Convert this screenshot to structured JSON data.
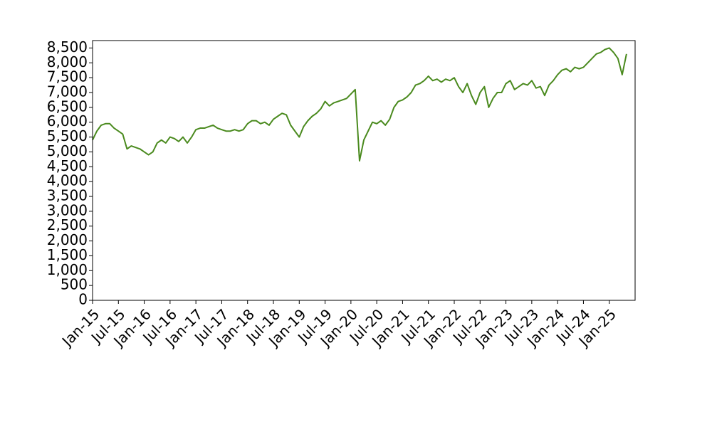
{
  "chart_data": {
    "type": "line",
    "x": [
      "2015-01",
      "2015-02",
      "2015-03",
      "2015-04",
      "2015-05",
      "2015-06",
      "2015-07",
      "2015-08",
      "2015-09",
      "2015-10",
      "2015-11",
      "2015-12",
      "2016-01",
      "2016-02",
      "2016-03",
      "2016-04",
      "2016-05",
      "2016-06",
      "2016-07",
      "2016-08",
      "2016-09",
      "2016-10",
      "2016-11",
      "2016-12",
      "2017-01",
      "2017-02",
      "2017-03",
      "2017-04",
      "2017-05",
      "2017-06",
      "2017-07",
      "2017-08",
      "2017-09",
      "2017-10",
      "2017-11",
      "2017-12",
      "2018-01",
      "2018-02",
      "2018-03",
      "2018-04",
      "2018-05",
      "2018-06",
      "2018-07",
      "2018-08",
      "2018-09",
      "2018-10",
      "2018-11",
      "2018-12",
      "2019-01",
      "2019-02",
      "2019-03",
      "2019-04",
      "2019-05",
      "2019-06",
      "2019-07",
      "2019-08",
      "2019-09",
      "2019-10",
      "2019-11",
      "2019-12",
      "2020-01",
      "2020-02",
      "2020-03",
      "2020-04",
      "2020-05",
      "2020-06",
      "2020-07",
      "2020-08",
      "2020-09",
      "2020-10",
      "2020-11",
      "2020-12",
      "2021-01",
      "2021-02",
      "2021-03",
      "2021-04",
      "2021-05",
      "2021-06",
      "2021-07",
      "2021-08",
      "2021-09",
      "2021-10",
      "2021-11",
      "2021-12",
      "2022-01",
      "2022-02",
      "2022-03",
      "2022-04",
      "2022-05",
      "2022-06",
      "2022-07",
      "2022-08",
      "2022-09",
      "2022-10",
      "2022-11",
      "2022-12",
      "2023-01",
      "2023-02",
      "2023-03",
      "2023-04",
      "2023-05",
      "2023-06",
      "2023-07",
      "2023-08",
      "2023-09",
      "2023-10",
      "2023-11",
      "2023-12",
      "2024-01",
      "2024-02",
      "2024-03",
      "2024-04",
      "2024-05",
      "2024-06",
      "2024-07",
      "2024-08",
      "2024-09",
      "2024-10",
      "2024-11",
      "2024-12",
      "2025-01",
      "2025-02",
      "2025-03",
      "2025-04",
      "2025-05"
    ],
    "series": [
      {
        "color": "#4a8a1e",
        "values": [
          5400,
          5700,
          5900,
          5950,
          5950,
          5800,
          5700,
          5600,
          5100,
          5200,
          5150,
          5100,
          5000,
          4900,
          5000,
          5300,
          5400,
          5300,
          5500,
          5450,
          5350,
          5500,
          5300,
          5500,
          5750,
          5800,
          5800,
          5850,
          5900,
          5800,
          5750,
          5700,
          5700,
          5750,
          5700,
          5750,
          5950,
          6050,
          6050,
          5950,
          6000,
          5900,
          6100,
          6200,
          6300,
          6250,
          5900,
          5700,
          5500,
          5850,
          6050,
          6200,
          6300,
          6450,
          6700,
          6550,
          6650,
          6700,
          6750,
          6800,
          6950,
          7100,
          4700,
          5400,
          5700,
          6000,
          5950,
          6050,
          5900,
          6100,
          6500,
          6700,
          6750,
          6850,
          7000,
          7250,
          7300,
          7400,
          7550,
          7400,
          7450,
          7350,
          7450,
          7400,
          7500,
          7200,
          7000,
          7300,
          6900,
          6600,
          7000,
          7200,
          6500,
          6800,
          7000,
          7000,
          7300,
          7400,
          7100,
          7200,
          7300,
          7250,
          7400,
          7150,
          7200,
          6900,
          7250,
          7400,
          7600,
          7750,
          7800,
          7700,
          7850,
          7800,
          7850,
          8000,
          8150,
          8300,
          8350,
          8450,
          8500,
          8350,
          8150,
          7600,
          8300
        ]
      }
    ],
    "xlim": [
      "2015-01",
      "2025-07"
    ],
    "xticks": [
      {
        "value": "2015-01",
        "label": "Jan-15"
      },
      {
        "value": "2015-07",
        "label": "Jul-15"
      },
      {
        "value": "2016-01",
        "label": "Jan-16"
      },
      {
        "value": "2016-07",
        "label": "Jul-16"
      },
      {
        "value": "2017-01",
        "label": "Jan-17"
      },
      {
        "value": "2017-07",
        "label": "Jul-17"
      },
      {
        "value": "2018-01",
        "label": "Jan-18"
      },
      {
        "value": "2018-07",
        "label": "Jul-18"
      },
      {
        "value": "2019-01",
        "label": "Jan-19"
      },
      {
        "value": "2019-07",
        "label": "Jul-19"
      },
      {
        "value": "2020-01",
        "label": "Jan-20"
      },
      {
        "value": "2020-07",
        "label": "Jul-20"
      },
      {
        "value": "2021-01",
        "label": "Jan-21"
      },
      {
        "value": "2021-07",
        "label": "Jul-21"
      },
      {
        "value": "2022-01",
        "label": "Jan-22"
      },
      {
        "value": "2022-07",
        "label": "Jul-22"
      },
      {
        "value": "2023-01",
        "label": "Jan-23"
      },
      {
        "value": "2023-07",
        "label": "Jul-23"
      },
      {
        "value": "2024-01",
        "label": "Jan-24"
      },
      {
        "value": "2024-07",
        "label": "Jul-24"
      },
      {
        "value": "2025-01",
        "label": "Jan-25"
      }
    ],
    "ylim": [
      0,
      8750
    ],
    "yticks": [
      0,
      500,
      {
        "value": 1000,
        "label": "1,000"
      },
      {
        "value": 1500,
        "label": "1,500"
      },
      {
        "value": 2000,
        "label": "2,000"
      },
      {
        "value": 2500,
        "label": "2,500"
      },
      {
        "value": 3000,
        "label": "3,000"
      },
      {
        "value": 3500,
        "label": "3,500"
      },
      {
        "value": 4000,
        "label": "4,000"
      },
      {
        "value": 4500,
        "label": "4,500"
      },
      {
        "value": 5000,
        "label": "5,000"
      },
      {
        "value": 5500,
        "label": "5,500"
      },
      {
        "value": 6000,
        "label": "6,000"
      },
      {
        "value": 6500,
        "label": "6,500"
      },
      {
        "value": 7000,
        "label": "7,000"
      },
      {
        "value": 7500,
        "label": "7,500"
      },
      {
        "value": 8000,
        "label": "8,000"
      },
      {
        "value": 8500,
        "label": "8,500"
      }
    ],
    "grid": false
  }
}
